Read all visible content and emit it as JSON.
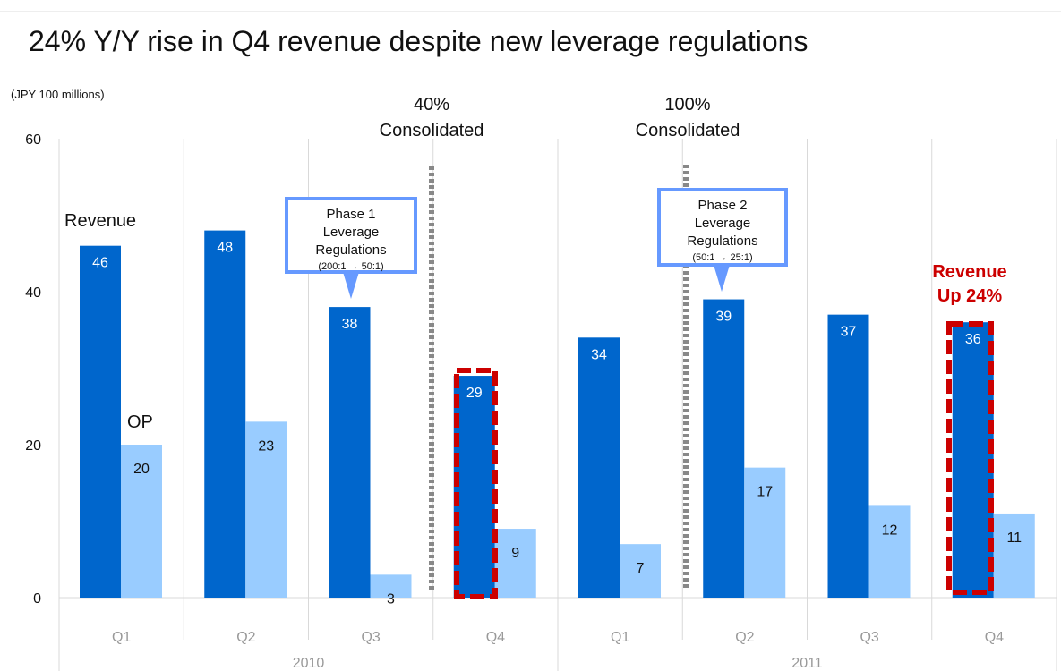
{
  "chart_data": {
    "type": "bar",
    "title": "24% Y/Y rise in Q4 revenue despite new leverage regulations",
    "ylabel": "(JPY 100 millions)",
    "ylim": [
      0,
      60
    ],
    "yticks": [
      0,
      20,
      40,
      60
    ],
    "grid": "vertical separators between quarters",
    "categories": [
      "Q1",
      "Q2",
      "Q3",
      "Q4",
      "Q1",
      "Q2",
      "Q3",
      "Q4"
    ],
    "groups": [
      {
        "label": "2010",
        "categories": [
          "Q1",
          "Q2",
          "Q3",
          "Q4"
        ]
      },
      {
        "label": "2011",
        "categories": [
          "Q1",
          "Q2",
          "Q3",
          "Q4"
        ]
      }
    ],
    "series": [
      {
        "name": "Revenue",
        "values": [
          46,
          48,
          38,
          29,
          34,
          39,
          37,
          36
        ],
        "color": "#0066CC"
      },
      {
        "name": "OP",
        "values": [
          20,
          23,
          3,
          9,
          7,
          17,
          12,
          11
        ],
        "color": "#99CCFF"
      }
    ],
    "annotations": {
      "consolidation": [
        {
          "lines": [
            "40%",
            "Consolidated"
          ]
        },
        {
          "lines": [
            "100%",
            "Consolidated"
          ]
        }
      ],
      "callouts": [
        {
          "lines": [
            "Phase 1",
            "Leverage",
            "Regulations"
          ],
          "sub": "(200:1 →    50:1)"
        },
        {
          "lines": [
            "Phase 2",
            "Leverage",
            "Regulations"
          ],
          "sub": "(50:1 →    25:1)"
        }
      ],
      "highlight_text": [
        "Revenue",
        "Up 24%"
      ]
    },
    "colors": {
      "revenue": "#0066CC",
      "op": "#99CCFF",
      "highlight": "#CC0000",
      "callout_border": "#6699FF",
      "separator": "#888888"
    }
  }
}
